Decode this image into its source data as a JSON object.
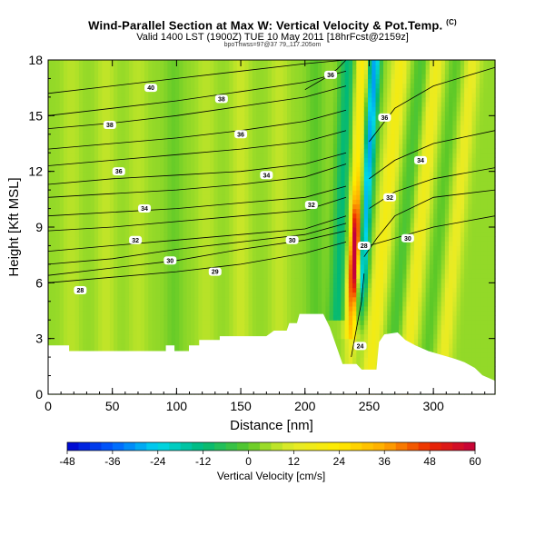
{
  "chart_data": {
    "type": "heatmap",
    "title": "Wind-Parallel Section at Max W: Vertical Velocity & Pot.Temp.",
    "title_mark": "(C)",
    "subtitle": "Valid 1400 LST (1900Z) TUE 10 May 2011 [18hrFcst@2159z]",
    "subtitle2": "bpoThwss=97@37 79,,117.205om",
    "xlabel": "Distance [nm]",
    "ylabel": "Height [Kft MSL]",
    "xlim": [
      0,
      348
    ],
    "ylim": [
      0,
      18
    ],
    "xticks": [
      "0",
      "50",
      "100",
      "150",
      "200",
      "250",
      "300"
    ],
    "yticks": [
      "0",
      "3",
      "6",
      "9",
      "12",
      "15",
      "18"
    ],
    "colorbar": {
      "label": "Vertical Velocity [cm/s]",
      "range": [
        -48,
        60
      ],
      "ticks": [
        "-48",
        "-36",
        "-24",
        "-12",
        "0",
        "12",
        "24",
        "36",
        "48",
        "60"
      ]
    },
    "updraft_core": {
      "x": 240,
      "bottom": 2,
      "top": 18,
      "peak": 60
    },
    "downdraft_core": {
      "x": 249,
      "bottom": 6,
      "top": 18,
      "min": -30
    },
    "terrain_kft": [
      [
        0,
        2.6
      ],
      [
        16,
        2.6
      ],
      [
        16,
        2.3
      ],
      [
        92,
        2.3
      ],
      [
        92,
        2.6
      ],
      [
        98,
        2.6
      ],
      [
        98,
        2.3
      ],
      [
        110,
        2.3
      ],
      [
        110,
        2.6
      ],
      [
        118,
        2.6
      ],
      [
        118,
        2.9
      ],
      [
        134,
        2.9
      ],
      [
        134,
        3.1
      ],
      [
        170,
        3.1
      ],
      [
        176,
        3.4
      ],
      [
        186,
        3.4
      ],
      [
        188,
        3.8
      ],
      [
        194,
        3.8
      ],
      [
        196,
        4.3
      ],
      [
        214,
        4.3
      ],
      [
        219,
        3.6
      ],
      [
        225,
        2.4
      ],
      [
        229,
        1.6
      ],
      [
        240,
        1.6
      ],
      [
        244,
        1.3
      ],
      [
        256,
        1.3
      ],
      [
        258,
        2.8
      ],
      [
        262,
        3.2
      ],
      [
        272,
        3.3
      ],
      [
        278,
        2.9
      ],
      [
        286,
        2.6
      ],
      [
        296,
        2.3
      ],
      [
        306,
        2.1
      ],
      [
        316,
        1.9
      ],
      [
        324,
        1.7
      ],
      [
        332,
        1.4
      ],
      [
        338,
        1.0
      ],
      [
        348,
        0.7
      ]
    ],
    "isentropes": [
      {
        "label": "28",
        "lx": 25,
        "ly": 5.6,
        "pts": [
          [
            0,
            6.0
          ],
          [
            50,
            6.3
          ],
          [
            100,
            6.6
          ],
          [
            150,
            7.0
          ],
          [
            200,
            7.6
          ],
          [
            232,
            8.2
          ]
        ]
      },
      {
        "label": "29",
        "lx": 130,
        "ly": 6.6,
        "pts": [
          [
            0,
            6.4
          ],
          [
            50,
            6.8
          ],
          [
            100,
            7.2
          ],
          [
            150,
            7.8
          ],
          [
            200,
            8.3
          ],
          [
            232,
            8.8
          ]
        ]
      },
      {
        "label": "30",
        "lx": 95,
        "ly": 7.2,
        "pts": [
          [
            0,
            7.0
          ],
          [
            50,
            7.3
          ],
          [
            100,
            7.8
          ],
          [
            150,
            8.2
          ],
          [
            200,
            8.6
          ],
          [
            232,
            9.2
          ]
        ]
      },
      {
        "label": "30",
        "lx": 190,
        "ly": 8.3,
        "pts": [
          [
            0,
            7.7
          ],
          [
            50,
            8.0
          ],
          [
            100,
            8.3
          ],
          [
            150,
            8.6
          ],
          [
            200,
            8.9
          ],
          [
            232,
            9.6
          ]
        ]
      },
      {
        "label": "32",
        "lx": 68,
        "ly": 8.3,
        "pts": [
          [
            0,
            8.8
          ],
          [
            50,
            9.0
          ],
          [
            100,
            9.3
          ],
          [
            150,
            9.6
          ],
          [
            200,
            9.9
          ],
          [
            232,
            10.6
          ]
        ]
      },
      {
        "label": "32",
        "lx": 205,
        "ly": 10.2,
        "pts": [
          [
            0,
            9.6
          ],
          [
            50,
            9.8
          ],
          [
            100,
            10.0
          ],
          [
            150,
            10.3
          ],
          [
            200,
            10.6
          ],
          [
            232,
            11.2
          ]
        ]
      },
      {
        "label": "34",
        "lx": 75,
        "ly": 10.0,
        "pts": [
          [
            0,
            10.6
          ],
          [
            50,
            10.8
          ],
          [
            100,
            11.0
          ],
          [
            150,
            11.3
          ],
          [
            200,
            11.7
          ],
          [
            232,
            12.4
          ]
        ]
      },
      {
        "label": "34",
        "lx": 170,
        "ly": 11.8,
        "pts": [
          [
            0,
            11.3
          ],
          [
            50,
            11.6
          ],
          [
            100,
            11.8
          ],
          [
            150,
            12.0
          ],
          [
            200,
            12.4
          ],
          [
            232,
            13.0
          ]
        ]
      },
      {
        "label": "36",
        "lx": 55,
        "ly": 12.0,
        "pts": [
          [
            0,
            12.3
          ],
          [
            50,
            12.6
          ],
          [
            100,
            12.9
          ],
          [
            150,
            13.2
          ],
          [
            200,
            13.6
          ],
          [
            232,
            14.2
          ]
        ]
      },
      {
        "label": "36",
        "lx": 150,
        "ly": 14.0,
        "pts": [
          [
            0,
            13.2
          ],
          [
            50,
            13.5
          ],
          [
            100,
            13.8
          ],
          [
            150,
            14.2
          ],
          [
            200,
            14.7
          ],
          [
            232,
            15.3
          ]
        ]
      },
      {
        "label": "38",
        "lx": 48,
        "ly": 14.5,
        "pts": [
          [
            0,
            14.3
          ],
          [
            50,
            14.6
          ],
          [
            100,
            15.0
          ],
          [
            150,
            15.5
          ],
          [
            200,
            16.0
          ],
          [
            232,
            16.6
          ]
        ]
      },
      {
        "label": "38",
        "lx": 135,
        "ly": 15.9,
        "pts": [
          [
            0,
            15.0
          ],
          [
            50,
            15.4
          ],
          [
            100,
            15.8
          ],
          [
            150,
            16.3
          ],
          [
            200,
            16.8
          ],
          [
            232,
            17.4
          ]
        ]
      },
      {
        "label": "40",
        "lx": 80,
        "ly": 16.5,
        "pts": [
          [
            0,
            16.2
          ],
          [
            50,
            16.6
          ],
          [
            100,
            17.0
          ],
          [
            150,
            17.4
          ],
          [
            200,
            17.8
          ],
          [
            232,
            18.0
          ]
        ]
      },
      {
        "label": "36",
        "lx": 220,
        "ly": 17.2,
        "pts": [
          [
            200,
            16.4
          ],
          [
            215,
            17.0
          ],
          [
            225,
            17.5
          ],
          [
            232,
            18.0
          ]
        ]
      },
      {
        "label": "36",
        "lx": 262,
        "ly": 14.9,
        "pts": [
          [
            250,
            13.6
          ],
          [
            270,
            15.4
          ],
          [
            300,
            16.6
          ],
          [
            348,
            17.6
          ]
        ]
      },
      {
        "label": "34",
        "lx": 290,
        "ly": 12.6,
        "pts": [
          [
            250,
            11.6
          ],
          [
            270,
            12.6
          ],
          [
            300,
            13.5
          ],
          [
            348,
            14.2
          ]
        ]
      },
      {
        "label": "32",
        "lx": 266,
        "ly": 10.6,
        "pts": [
          [
            250,
            10.0
          ],
          [
            270,
            10.9
          ],
          [
            300,
            11.6
          ],
          [
            348,
            12.2
          ]
        ]
      },
      {
        "label": "30",
        "lx": 280,
        "ly": 8.4,
        "pts": [
          [
            250,
            8.0
          ],
          [
            270,
            8.4
          ],
          [
            300,
            9.0
          ],
          [
            348,
            9.6
          ]
        ]
      },
      {
        "label": "28",
        "lx": 246,
        "ly": 8.0,
        "pts": [
          [
            246,
            7.4
          ],
          [
            256,
            8.4
          ],
          [
            270,
            9.6
          ],
          [
            300,
            10.6
          ],
          [
            348,
            11.0
          ]
        ]
      },
      {
        "label": "24",
        "lx": 243,
        "ly": 2.6,
        "pts": [
          [
            236,
            2.0
          ],
          [
            240,
            3.5
          ],
          [
            244,
            5.0
          ],
          [
            246,
            6.5
          ]
        ]
      }
    ],
    "annotations": [
      "28",
      "29",
      "30",
      "32",
      "34",
      "36",
      "38",
      "40"
    ]
  }
}
